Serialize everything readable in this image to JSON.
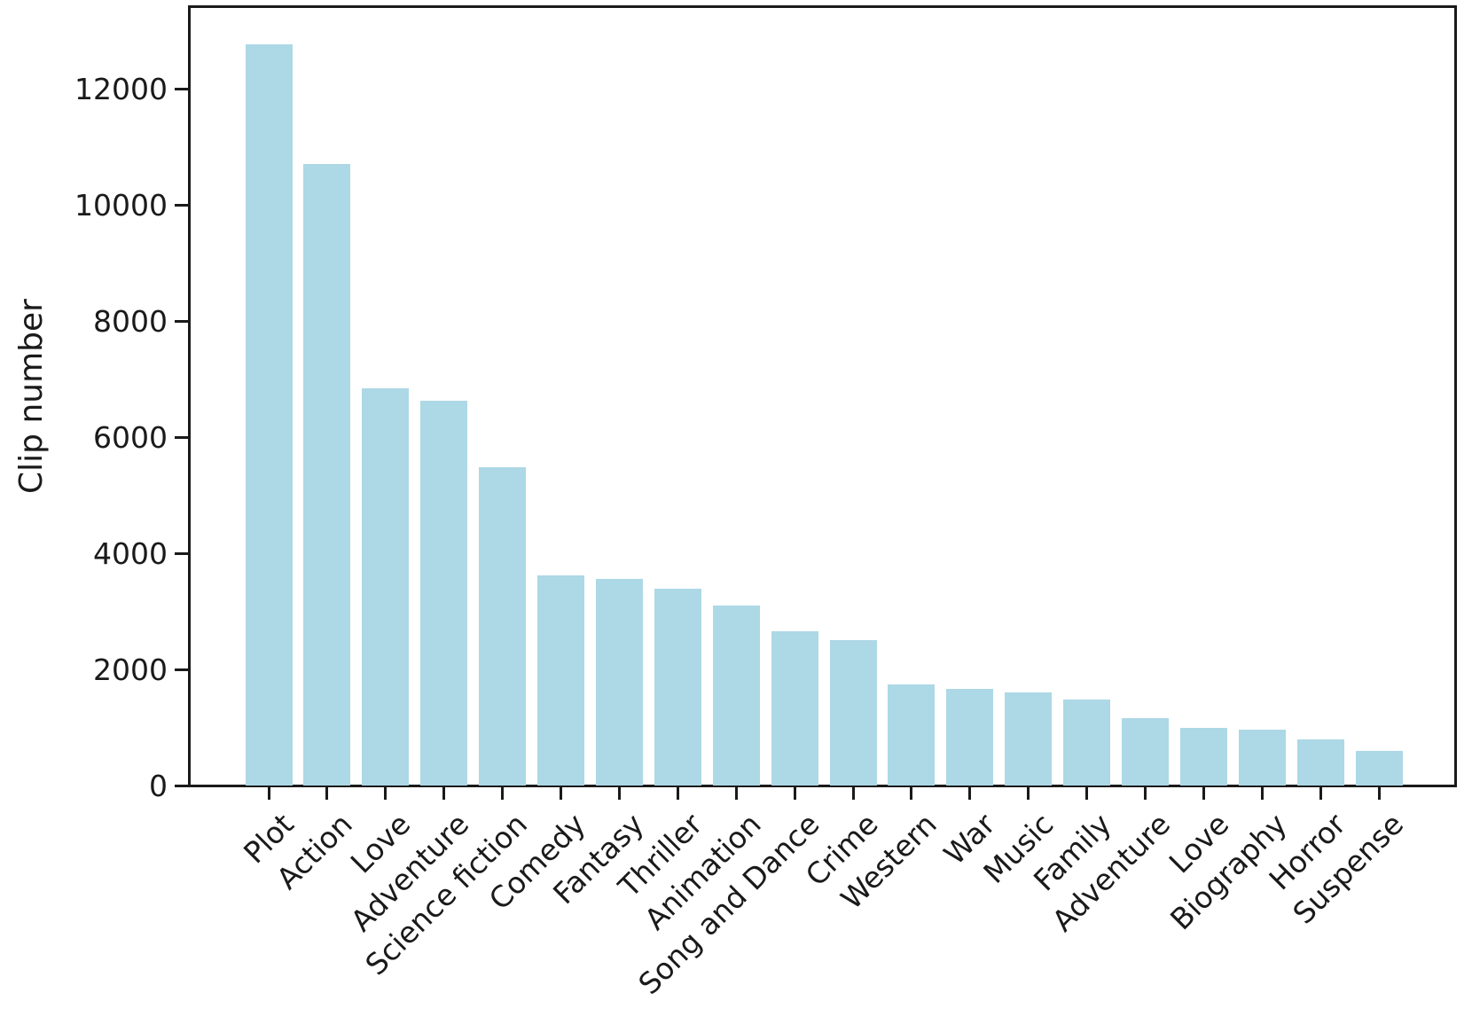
{
  "chart_data": {
    "type": "bar",
    "title": "",
    "xlabel": "",
    "ylabel": "Clip number",
    "categories": [
      "Plot",
      "Action",
      "Love",
      "Adventure",
      "Science fiction",
      "Comedy",
      "Fantasy",
      "Thriller",
      "Animation",
      "Song and Dance",
      "Crime",
      "Western",
      "War",
      "Music",
      "Family",
      "Adventure",
      "Love",
      "Biography",
      "Horror",
      "Suspense"
    ],
    "values": [
      12780,
      10720,
      6840,
      6640,
      5480,
      3620,
      3560,
      3400,
      3110,
      2660,
      2510,
      1740,
      1660,
      1610,
      1480,
      1160,
      1000,
      960,
      790,
      590
    ],
    "yticks": [
      0,
      2000,
      4000,
      6000,
      8000,
      10000,
      12000
    ],
    "ytick_labels": [
      "0",
      "2000",
      "4000",
      "6000",
      "8000",
      "10000",
      "12000"
    ],
    "ylim": [
      0,
      13480
    ],
    "xtick_rotation": 45,
    "grid": false,
    "legend": null,
    "bar_color": "#ADD8E6",
    "axis_color": "#1a1a1a"
  }
}
